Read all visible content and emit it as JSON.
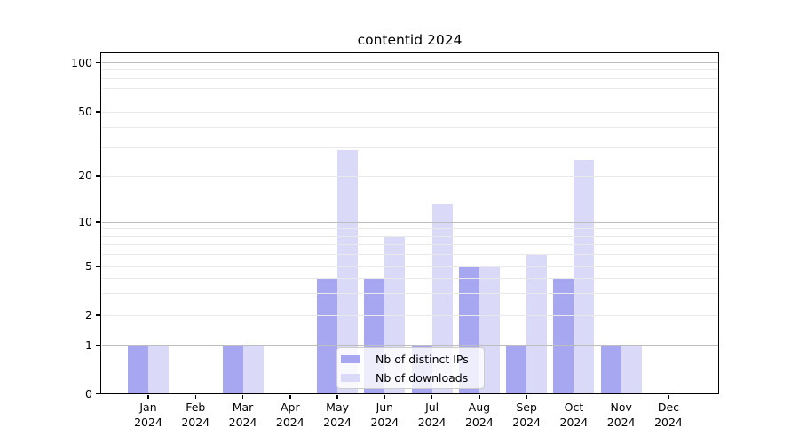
{
  "chart_data": {
    "type": "bar",
    "title": "contentid 2024",
    "x_axis": {
      "months": [
        "Jan",
        "Feb",
        "Mar",
        "Apr",
        "May",
        "Jun",
        "Jul",
        "Aug",
        "Sep",
        "Oct",
        "Nov",
        "Dec"
      ],
      "year": "2024"
    },
    "y_axis": {
      "scale": "symlog",
      "tick_labels": [
        0,
        1,
        2,
        5,
        10,
        20,
        50,
        100
      ],
      "range": [
        0,
        100
      ],
      "gridlines_major": [
        1,
        10,
        100
      ],
      "gridlines_minor": [
        2,
        3,
        4,
        5,
        6,
        7,
        8,
        9,
        20,
        30,
        40,
        50,
        60,
        70,
        80,
        90
      ]
    },
    "series": [
      {
        "name": "Nb of distinct IPs",
        "color": "#a7a7f1",
        "values": [
          1,
          0,
          1,
          0,
          4,
          4,
          1,
          5,
          1,
          4,
          1,
          0
        ]
      },
      {
        "name": "Nb of downloads",
        "color": "#dadaf8",
        "values": [
          1,
          0,
          1,
          0,
          29,
          8,
          13,
          5,
          6,
          25,
          1,
          0
        ]
      }
    ],
    "legend": {
      "position": "lower center",
      "entries": [
        "Nb of distinct IPs",
        "Nb of downloads"
      ]
    },
    "colors": {
      "grid_major": "#bdbdbd",
      "grid_minor": "#e9e9e9",
      "spine": "#000000",
      "background": "#ffffff"
    }
  }
}
